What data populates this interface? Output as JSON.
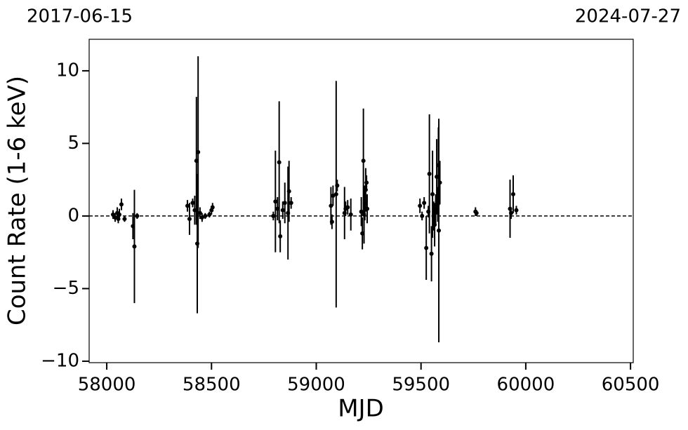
{
  "chart_data": {
    "type": "errorbar-scatter",
    "xlabel": "MJD",
    "ylabel": "Count Rate (1-6 keV)",
    "annotations": [
      "2017-06-15",
      "2024-07-27"
    ],
    "hline": 0,
    "color": "#000000",
    "xlim": [
      57916,
      60513
    ],
    "ylim": [
      -10.1,
      12.17
    ],
    "xticks": [
      58000,
      58500,
      59000,
      59500,
      60000,
      60500
    ],
    "yticks": [
      {
        "value": -10,
        "label": "−10"
      },
      {
        "value": -5,
        "label": "−5"
      },
      0,
      5,
      10
    ],
    "x": [
      58030,
      58040,
      58050,
      58055,
      58060,
      58070,
      58085,
      58125,
      58132,
      58145,
      58385,
      58395,
      58410,
      58420,
      58428,
      58432,
      58436,
      58445,
      58455,
      58470,
      58490,
      58500,
      58505,
      58795,
      58805,
      58815,
      58823,
      58828,
      58840,
      58850,
      58865,
      58870,
      58880,
      59070,
      59075,
      59080,
      59095,
      59100,
      59135,
      59140,
      59150,
      59165,
      59215,
      59220,
      59225,
      59228,
      59232,
      59236,
      59240,
      59243,
      59495,
      59505,
      59515,
      59525,
      59535,
      59540,
      59550,
      59555,
      59560,
      59565,
      59570,
      59575,
      59580,
      59583,
      59585,
      59590,
      59760,
      59765,
      59925,
      59930,
      59940,
      59955
    ],
    "values": [
      0.1,
      -0.1,
      0.2,
      -0.2,
      0.1,
      0.8,
      -0.2,
      -0.7,
      -2.1,
      0.0,
      0.7,
      -0.2,
      0.9,
      0.4,
      3.8,
      -1.9,
      4.4,
      0.2,
      -0.1,
      0.0,
      0.1,
      0.4,
      0.6,
      0.0,
      1.0,
      0.5,
      3.7,
      -1.4,
      0.4,
      0.9,
      0.2,
      1.7,
      0.9,
      0.7,
      -0.4,
      1.4,
      1.5,
      2.1,
      0.2,
      0.5,
      0.6,
      0.1,
      0.3,
      -1.2,
      3.8,
      0.1,
      0.9,
      1.8,
      2.3,
      0.5,
      0.7,
      0.0,
      0.9,
      -2.2,
      0.3,
      2.9,
      -2.6,
      1.5,
      0.0,
      -0.6,
      0.5,
      2.7,
      0.8,
      3.5,
      -1.0,
      2.3,
      0.3,
      0.2,
      0.5,
      0.2,
      1.5,
      0.4
    ],
    "errors": [
      0.3,
      0.3,
      0.4,
      0.3,
      0.4,
      0.4,
      0.2,
      0.9,
      3.9,
      0.2,
      0.4,
      1.1,
      0.3,
      1.0,
      4.4,
      4.8,
      6.6,
      0.4,
      0.3,
      0.2,
      0.2,
      0.3,
      0.3,
      0.3,
      3.5,
      0.8,
      4.2,
      1.1,
      0.6,
      1.4,
      3.2,
      2.1,
      0.4,
      1.3,
      0.5,
      0.7,
      7.8,
      0.4,
      1.8,
      0.5,
      0.5,
      1.1,
      1.0,
      1.1,
      3.6,
      2.0,
      1.2,
      1.5,
      0.5,
      1.0,
      0.5,
      0.3,
      0.4,
      2.2,
      0.4,
      4.1,
      1.9,
      3.0,
      1.0,
      1.5,
      1.0,
      2.6,
      1.2,
      2.6,
      7.7,
      1.5,
      0.3,
      0.2,
      2.0,
      0.4,
      1.3,
      0.3
    ]
  }
}
